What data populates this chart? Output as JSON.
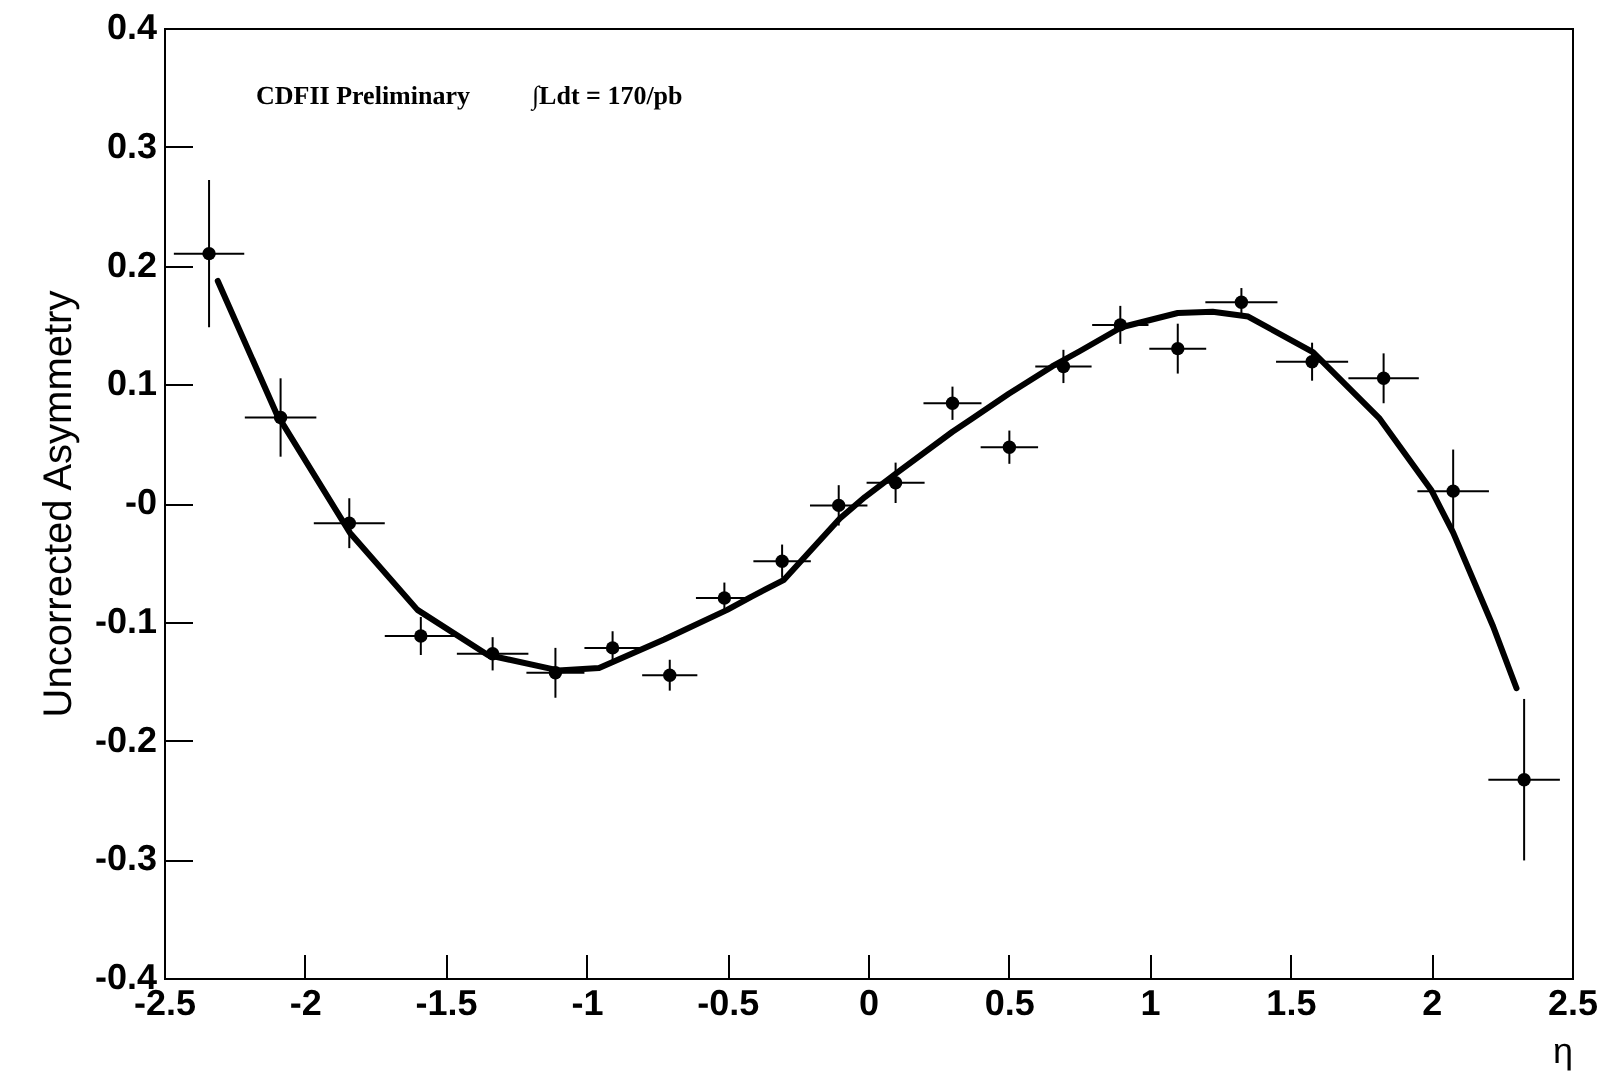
{
  "chart_data": {
    "type": "scatter",
    "xlabel": "η",
    "ylabel": "Uncorrected Asymmetry",
    "annotations": [
      "CDFII Preliminary",
      "∫Ldt = 170/pb"
    ],
    "xlim": [
      -2.5,
      2.5
    ],
    "xticks": [
      -2.5,
      -2,
      -1.5,
      -1,
      -0.5,
      0,
      0.5,
      1,
      1.5,
      2,
      2.5
    ],
    "ylim": [
      -0.4,
      0.4
    ],
    "yticks": [
      -0.4,
      -0.3,
      -0.2,
      -0.1,
      {
        "value": 0,
        "label": "-0"
      },
      0.1,
      0.2,
      0.3,
      0.4
    ],
    "grid": false,
    "series": [
      {
        "color": "#000000",
        "marker": "circle",
        "x": [
          -2.34,
          -2.086,
          -1.842,
          -1.588,
          -1.333,
          -1.11,
          -0.907,
          -0.704,
          -0.51,
          -0.305,
          -0.104,
          0.098,
          0.3,
          0.502,
          0.694,
          0.896,
          1.1,
          1.326,
          1.577,
          1.831,
          2.078,
          2.33
        ],
        "values": [
          0.21,
          0.072,
          -0.017,
          -0.112,
          -0.127,
          -0.143,
          -0.122,
          -0.145,
          -0.08,
          -0.049,
          -0.002,
          0.017,
          0.084,
          0.047,
          0.115,
          0.15,
          0.13,
          0.169,
          0.119,
          0.105,
          0.01,
          -0.233
        ],
        "errors": [
          0.062,
          0.033,
          0.021,
          0.016,
          0.014,
          0.021,
          0.014,
          0.013,
          0.013,
          0.014,
          0.017,
          0.017,
          0.014,
          0.014,
          0.014,
          0.016,
          0.021,
          0.012,
          0.016,
          0.021,
          0.035,
          0.068
        ],
        "xerrors": [
          0.125,
          0.127,
          0.126,
          0.128,
          0.127,
          0.103,
          0.1,
          0.098,
          0.101,
          0.102,
          0.102,
          0.103,
          0.103,
          0.102,
          0.1,
          0.1,
          0.101,
          0.128,
          0.128,
          0.125,
          0.127,
          0.127
        ]
      },
      {
        "type": "line",
        "color": "#000000",
        "marker": "none",
        "line_style": "solid",
        "x": [
          -2.309,
          -2.1,
          -1.84,
          -1.6,
          -1.35,
          -1.1,
          -0.955,
          -0.724,
          -0.5,
          -0.415,
          -0.3,
          -0.1,
          -0.011,
          0.1,
          0.3,
          0.369,
          0.5,
          0.654,
          0.753,
          0.9,
          1.1,
          1.224,
          1.35,
          1.58,
          1.817,
          2.0,
          2.078,
          2.22,
          2.303
        ],
        "values": [
          0.187,
          0.075,
          -0.025,
          -0.09,
          -0.128,
          -0.141,
          -0.139,
          -0.115,
          -0.09,
          -0.079,
          -0.065,
          -0.013,
          0.005,
          0.025,
          0.06,
          0.071,
          0.092,
          0.115,
          0.128,
          0.148,
          0.16,
          0.161,
          0.157,
          0.127,
          0.071,
          0.011,
          -0.025,
          -0.104,
          -0.156
        ]
      }
    ]
  }
}
